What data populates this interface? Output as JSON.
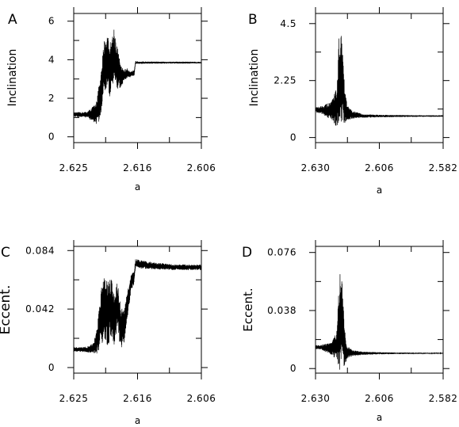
{
  "chart_data": [
    {
      "panel": "A",
      "type": "line",
      "xlabel": "a",
      "ylabel": "Inclination",
      "x_ticks": [
        "2.625",
        "2.616",
        "2.606"
      ],
      "y_ticks": [
        "0",
        "2",
        "4",
        "6"
      ],
      "xlim": [
        2.625,
        2.606
      ],
      "ylim": [
        0,
        6
      ],
      "y_range": [
        -0.3,
        6.4
      ],
      "x_reversed": true,
      "grid": false,
      "series": [
        {
          "color": "#000000",
          "x": [
            2.625,
            2.623,
            2.6218,
            2.6215,
            2.621,
            2.6205,
            2.62,
            2.6195,
            2.619,
            2.6185,
            2.618,
            2.6175,
            2.617,
            2.6165,
            2.616,
            2.6158,
            2.615,
            2.613,
            2.61,
            2.608,
            2.606
          ],
          "y": [
            1.15,
            1.15,
            1.2,
            1.4,
            2.0,
            3.7,
            3.9,
            3.4,
            4.3,
            3.6,
            3.1,
            3.2,
            3.3,
            3.25,
            3.3,
            3.85,
            3.85,
            3.85,
            3.85,
            3.85,
            3.85
          ],
          "amp": [
            0.12,
            0.15,
            0.5,
            0.8,
            1.1,
            1.3,
            1.5,
            1.5,
            1.4,
            1.1,
            0.6,
            0.3,
            0.25,
            0.15,
            0.15,
            0.08,
            0.06,
            0.05,
            0.05,
            0.05,
            0.04
          ]
        }
      ]
    },
    {
      "panel": "B",
      "type": "line",
      "xlabel": "a",
      "ylabel": "Inclination",
      "x_ticks": [
        "2.630",
        "2.606",
        "2.582"
      ],
      "y_ticks": [
        "0",
        "2.25",
        "4.5"
      ],
      "xlim": [
        2.63,
        2.582
      ],
      "ylim": [
        0,
        4.5
      ],
      "y_range": [
        -0.2,
        4.9
      ],
      "x_reversed": true,
      "grid": false,
      "series": [
        {
          "color": "#000000",
          "x": [
            2.632,
            2.628,
            2.624,
            2.622,
            2.621,
            2.62,
            2.619,
            2.618,
            2.616,
            2.612,
            2.606,
            2.6,
            2.59,
            2.582
          ],
          "y": [
            1.1,
            1.1,
            1.05,
            1.2,
            2.5,
            2.2,
            1.2,
            0.95,
            0.9,
            0.85,
            0.85,
            0.85,
            0.85,
            0.85
          ],
          "amp": [
            0.08,
            0.15,
            0.35,
            0.8,
            2.0,
            1.6,
            0.7,
            0.3,
            0.15,
            0.07,
            0.05,
            0.04,
            0.03,
            0.03
          ]
        }
      ]
    },
    {
      "panel": "C",
      "type": "line",
      "xlabel": "a",
      "ylabel": "Eccent.",
      "x_ticks": [
        "2.625",
        "2.616",
        "2.606"
      ],
      "y_ticks": [
        "0",
        "0.042",
        "0.084"
      ],
      "xlim": [
        2.625,
        2.606
      ],
      "ylim": [
        0,
        0.084
      ],
      "y_range": [
        -0.004,
        0.087
      ],
      "x_reversed": true,
      "grid": false,
      "series": [
        {
          "color": "#000000",
          "x": [
            2.625,
            2.623,
            2.622,
            2.6215,
            2.621,
            2.6205,
            2.62,
            2.6195,
            2.619,
            2.6185,
            2.618,
            2.6175,
            2.617,
            2.6165,
            2.616,
            2.6158,
            2.615,
            2.613,
            2.61,
            2.608,
            2.606
          ],
          "y": [
            0.013,
            0.013,
            0.014,
            0.02,
            0.035,
            0.045,
            0.038,
            0.045,
            0.035,
            0.045,
            0.028,
            0.03,
            0.045,
            0.06,
            0.065,
            0.075,
            0.074,
            0.073,
            0.072,
            0.072,
            0.072
          ],
          "amp": [
            0.0015,
            0.002,
            0.004,
            0.01,
            0.02,
            0.025,
            0.025,
            0.022,
            0.02,
            0.018,
            0.015,
            0.012,
            0.01,
            0.006,
            0.005,
            0.003,
            0.003,
            0.0025,
            0.002,
            0.002,
            0.002
          ]
        }
      ]
    },
    {
      "panel": "D",
      "type": "line",
      "xlabel": "a",
      "ylabel": "Eccent.",
      "x_ticks": [
        "2.630",
        "2.606",
        "2.582"
      ],
      "y_ticks": [
        "0",
        "0.038",
        "0.076"
      ],
      "xlim": [
        2.63,
        2.582
      ],
      "ylim": [
        0,
        0.076
      ],
      "y_range": [
        -0.003,
        0.08
      ],
      "x_reversed": true,
      "grid": false,
      "series": [
        {
          "color": "#000000",
          "x": [
            2.632,
            2.628,
            2.624,
            2.622,
            2.621,
            2.62,
            2.619,
            2.618,
            2.616,
            2.612,
            2.606,
            2.6,
            2.59,
            2.582
          ],
          "y": [
            0.014,
            0.014,
            0.013,
            0.015,
            0.03,
            0.028,
            0.014,
            0.011,
            0.01,
            0.01,
            0.01,
            0.01,
            0.01,
            0.01
          ],
          "amp": [
            0.001,
            0.0015,
            0.004,
            0.01,
            0.034,
            0.03,
            0.012,
            0.004,
            0.002,
            0.001,
            0.0007,
            0.0005,
            0.0004,
            0.0003
          ]
        }
      ]
    }
  ]
}
